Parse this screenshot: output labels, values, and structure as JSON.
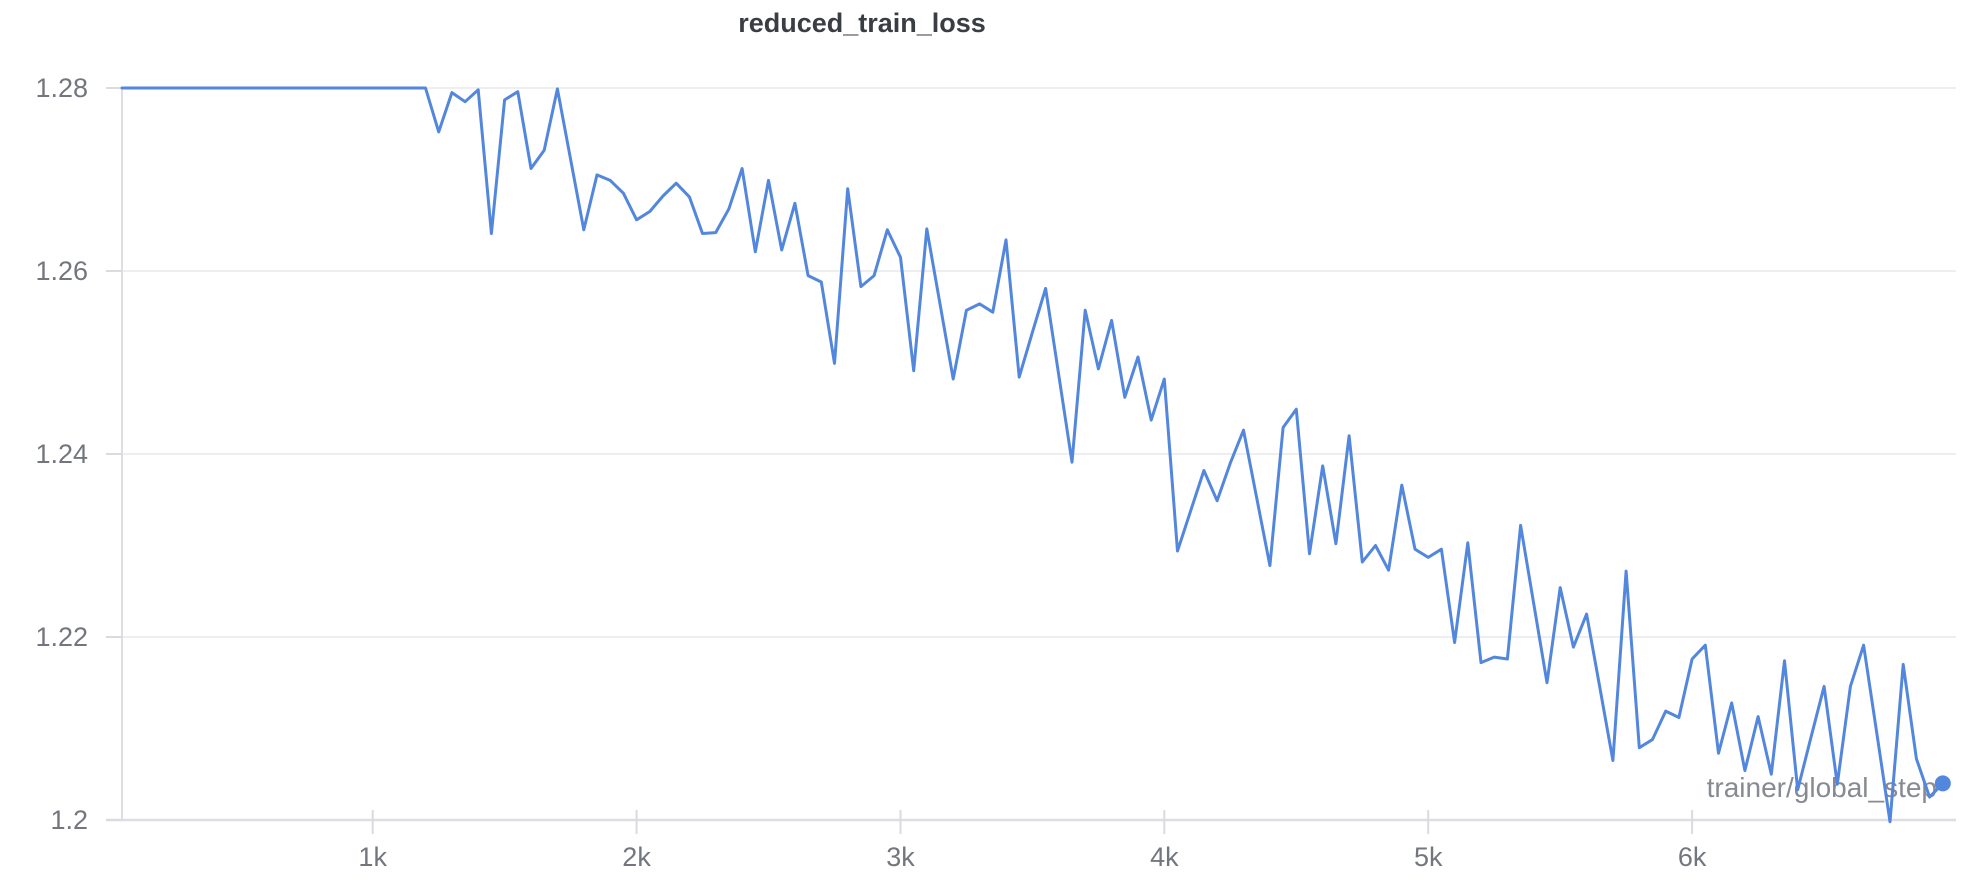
{
  "panel": {
    "title": "reduced_train_loss",
    "x_axis_label": "trainer/global_step"
  },
  "colors": {
    "line": "#5387dd",
    "marker": "#5387dd",
    "grid": "#e8e9ec",
    "axis": "#dcdee2",
    "tick_mark": "#d9dbdf",
    "tick_label": "#73767e",
    "title_text": "#3a3d44",
    "axis_label_text": "#878a92",
    "background": "#ffffff"
  },
  "chart_data": {
    "type": "line",
    "title": "reduced_train_loss",
    "xlabel": "trainer/global_step",
    "ylabel": "",
    "series_name": "reduced_train_loss",
    "legend": "none",
    "grid": "horizontal",
    "end_marker": true,
    "xlim": [
      50,
      7000
    ],
    "ylim": [
      1.2,
      1.28
    ],
    "x_start": 50,
    "x_step": 50,
    "xticks": [
      {
        "value": 1000,
        "label": "1k"
      },
      {
        "value": 2000,
        "label": "2k"
      },
      {
        "value": 3000,
        "label": "3k"
      },
      {
        "value": 4000,
        "label": "4k"
      },
      {
        "value": 5000,
        "label": "5k"
      },
      {
        "value": 6000,
        "label": "6k"
      }
    ],
    "yticks": [
      {
        "value": 1.28,
        "label": "1.28"
      },
      {
        "value": 1.26,
        "label": "1.26"
      },
      {
        "value": 1.24,
        "label": "1.24"
      },
      {
        "value": 1.22,
        "label": "1.22"
      },
      {
        "value": 1.2,
        "label": "1.2"
      }
    ],
    "values": [
      1.28,
      1.28,
      1.28,
      1.28,
      1.28,
      1.28,
      1.28,
      1.28,
      1.28,
      1.28,
      1.28,
      1.28,
      1.28,
      1.28,
      1.28,
      1.28,
      1.28,
      1.28,
      1.28,
      1.28,
      1.28,
      1.28,
      1.28,
      1.28,
      1.2752,
      1.2795,
      1.2785,
      1.2798,
      1.2641,
      1.2787,
      1.2796,
      1.2712,
      1.2732,
      1.2799,
      1.2722,
      1.2645,
      1.2705,
      1.2699,
      1.2685,
      1.2656,
      1.2665,
      1.2682,
      1.2696,
      1.2681,
      1.2641,
      1.2642,
      1.2668,
      1.2712,
      1.2621,
      1.2699,
      1.2623,
      1.2674,
      1.2595,
      1.2588,
      1.2499,
      1.269,
      1.2583,
      1.2595,
      1.2645,
      1.2615,
      1.2491,
      1.2646,
      1.2564,
      1.2482,
      1.2557,
      1.2564,
      1.2555,
      1.2634,
      1.2484,
      1.2533,
      1.2581,
      1.2486,
      1.2391,
      1.2557,
      1.2493,
      1.2546,
      1.2462,
      1.2506,
      1.2437,
      1.2482,
      1.2294,
      1.2338,
      1.2382,
      1.2349,
      1.239,
      1.2426,
      1.2352,
      1.2278,
      1.2429,
      1.2449,
      1.2291,
      1.2387,
      1.2302,
      1.242,
      1.2282,
      1.23,
      1.2273,
      1.2366,
      1.2296,
      1.2287,
      1.2296,
      1.2194,
      1.2303,
      1.2172,
      1.2178,
      1.2176,
      1.2322,
      1.2236,
      1.215,
      1.2254,
      1.2189,
      1.2225,
      1.2145,
      1.2065,
      1.2272,
      1.2079,
      1.2088,
      1.2119,
      1.2112,
      1.2176,
      1.2191,
      1.2073,
      1.2128,
      1.2054,
      1.2113,
      1.205,
      1.2174,
      1.2033,
      1.209,
      1.2146,
      1.2039,
      1.2146,
      1.2191,
      1.2095,
      1.1998,
      1.217,
      1.2067,
      1.2025,
      1.204
    ]
  }
}
